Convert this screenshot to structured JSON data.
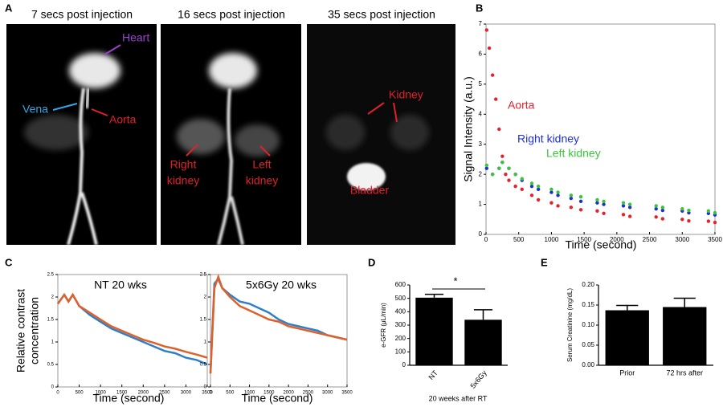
{
  "panel_labels": [
    "A",
    "B",
    "C",
    "D",
    "E"
  ],
  "images": [
    {
      "title": "7 secs post injection",
      "annotations": [
        "Heart",
        "Vena",
        "Aorta"
      ]
    },
    {
      "title": "16 secs post injection",
      "annotations": [
        [
          "Right",
          "kidney"
        ],
        [
          "Left",
          "kidney"
        ]
      ]
    },
    {
      "title": "35 secs post injection",
      "annotations": [
        "Kidney",
        "Bladder"
      ]
    }
  ],
  "chart_data": [
    {
      "type": "scatter",
      "xlabel": "Time (second)",
      "ylabel": "Signal Intensity (a.u.)",
      "xlim": [
        0,
        3500
      ],
      "ylim": [
        0,
        7
      ],
      "xticks": [
        0,
        500,
        1000,
        1500,
        2000,
        2500,
        3000,
        3500
      ],
      "yticks": [
        0,
        1,
        2,
        3,
        4,
        5,
        6,
        7
      ],
      "series": [
        {
          "name": "Aorta",
          "color": "#e8202a",
          "x": [
            10,
            50,
            100,
            150,
            200,
            250,
            300,
            350,
            450,
            550,
            700,
            800,
            1000,
            1100,
            1300,
            1450,
            1700,
            1800,
            2100,
            2200,
            2600,
            2700,
            3000,
            3100,
            3400,
            3500
          ],
          "values": [
            6.8,
            6.2,
            5.3,
            4.5,
            3.5,
            2.6,
            2.0,
            1.8,
            1.6,
            1.5,
            1.3,
            1.15,
            1.05,
            0.95,
            0.9,
            0.82,
            0.78,
            0.7,
            0.66,
            0.6,
            0.58,
            0.52,
            0.5,
            0.45,
            0.44,
            0.4
          ]
        },
        {
          "name": "Right kidney",
          "color": "#1f2fd0",
          "x": [
            10,
            100,
            200,
            250,
            350,
            450,
            550,
            700,
            800,
            1000,
            1100,
            1300,
            1450,
            1700,
            1800,
            2100,
            2200,
            2600,
            2700,
            3000,
            3100,
            3400,
            3500
          ],
          "values": [
            2.2,
            2.0,
            2.2,
            2.4,
            2.2,
            2.0,
            1.8,
            1.6,
            1.5,
            1.4,
            1.3,
            1.2,
            1.1,
            1.05,
            1.0,
            0.95,
            0.9,
            0.85,
            0.8,
            0.78,
            0.72,
            0.7,
            0.65
          ]
        },
        {
          "name": "Left kidney",
          "color": "#3cc43c",
          "x": [
            10,
            100,
            200,
            250,
            350,
            450,
            550,
            700,
            800,
            1000,
            1100,
            1300,
            1450,
            1700,
            1800,
            2100,
            2200,
            2600,
            2700,
            3000,
            3100,
            3400,
            3500
          ],
          "values": [
            2.3,
            2.0,
            2.2,
            2.4,
            2.2,
            2.0,
            1.85,
            1.7,
            1.6,
            1.5,
            1.4,
            1.3,
            1.25,
            1.15,
            1.1,
            1.05,
            1.0,
            0.95,
            0.9,
            0.85,
            0.8,
            0.78,
            0.72
          ]
        }
      ]
    },
    {
      "type": "line",
      "title": "NT 20 wks",
      "xlabel": "Time (second)",
      "ylabel": [
        "Relative contrast",
        "concentration"
      ],
      "xlim": [
        0,
        3500
      ],
      "ylim": [
        0,
        2.5
      ],
      "xticks": [
        0,
        500,
        1000,
        1500,
        2000,
        2500,
        3000,
        3500
      ],
      "yticks": [
        0,
        0.5,
        1,
        1.5,
        2,
        2.5
      ],
      "x": [
        0,
        150,
        250,
        350,
        500,
        750,
        1000,
        1250,
        1500,
        1750,
        2000,
        2250,
        2500,
        2750,
        3000,
        3250,
        3500
      ],
      "series": [
        {
          "color": "#2f7fc8",
          "values": [
            1.85,
            2.05,
            1.9,
            2.05,
            1.8,
            1.6,
            1.45,
            1.3,
            1.2,
            1.1,
            1.0,
            0.9,
            0.8,
            0.75,
            0.65,
            0.6,
            0.5
          ]
        },
        {
          "color": "#e0602a",
          "values": [
            1.85,
            2.05,
            1.9,
            2.05,
            1.8,
            1.65,
            1.5,
            1.35,
            1.25,
            1.15,
            1.05,
            0.98,
            0.9,
            0.85,
            0.78,
            0.72,
            0.65
          ]
        }
      ]
    },
    {
      "type": "line",
      "title": "5x6Gy 20 wks",
      "xlabel": "Time (second)",
      "xlim": [
        0,
        3500
      ],
      "ylim": [
        0,
        2.5
      ],
      "xticks": [
        0,
        500,
        1000,
        1500,
        2000,
        2500,
        3000,
        3500
      ],
      "yticks": [
        0,
        0.5,
        1,
        1.5,
        2,
        2.5
      ],
      "x": [
        0,
        100,
        200,
        300,
        500,
        750,
        1000,
        1250,
        1500,
        1750,
        2000,
        2250,
        2500,
        2750,
        3000,
        3250,
        3500
      ],
      "series": [
        {
          "color": "#2f7fc8",
          "values": [
            0.3,
            2.3,
            2.4,
            2.2,
            2.05,
            1.9,
            1.85,
            1.75,
            1.65,
            1.5,
            1.4,
            1.35,
            1.3,
            1.25,
            1.15,
            1.1,
            1.05
          ]
        },
        {
          "color": "#e0602a",
          "values": [
            0.3,
            2.2,
            2.45,
            2.2,
            2.0,
            1.8,
            1.7,
            1.6,
            1.5,
            1.45,
            1.35,
            1.3,
            1.25,
            1.2,
            1.15,
            1.1,
            1.05
          ]
        }
      ]
    },
    {
      "type": "bar",
      "xlabel": "20 weeks after RT",
      "ylabel": "e-GFR (μL/min)",
      "annotations": [
        "*"
      ],
      "categories": [
        "NT",
        "5x6Gy"
      ],
      "values": [
        505,
        340
      ],
      "errors": [
        25,
        75
      ],
      "color": "#000000",
      "ylim": [
        0,
        600
      ],
      "yticks": [
        0,
        100,
        200,
        300,
        400,
        500,
        600
      ]
    },
    {
      "type": "bar",
      "ylabel": "Serum Creatinine (mg/dL)",
      "categories": [
        "Prior",
        "72 hrs after"
      ],
      "values": [
        0.137,
        0.145
      ],
      "errors": [
        0.012,
        0.022
      ],
      "color": "#000000",
      "ylim": [
        0,
        0.2
      ],
      "yticks": [
        {
          "value": 0,
          "label": "0.00"
        },
        {
          "value": 0.05,
          "label": "0.05"
        },
        {
          "value": 0.1,
          "label": "0.10"
        },
        {
          "value": 0.15,
          "label": "0.15"
        },
        {
          "value": 0.2,
          "label": "0.20"
        }
      ]
    }
  ]
}
